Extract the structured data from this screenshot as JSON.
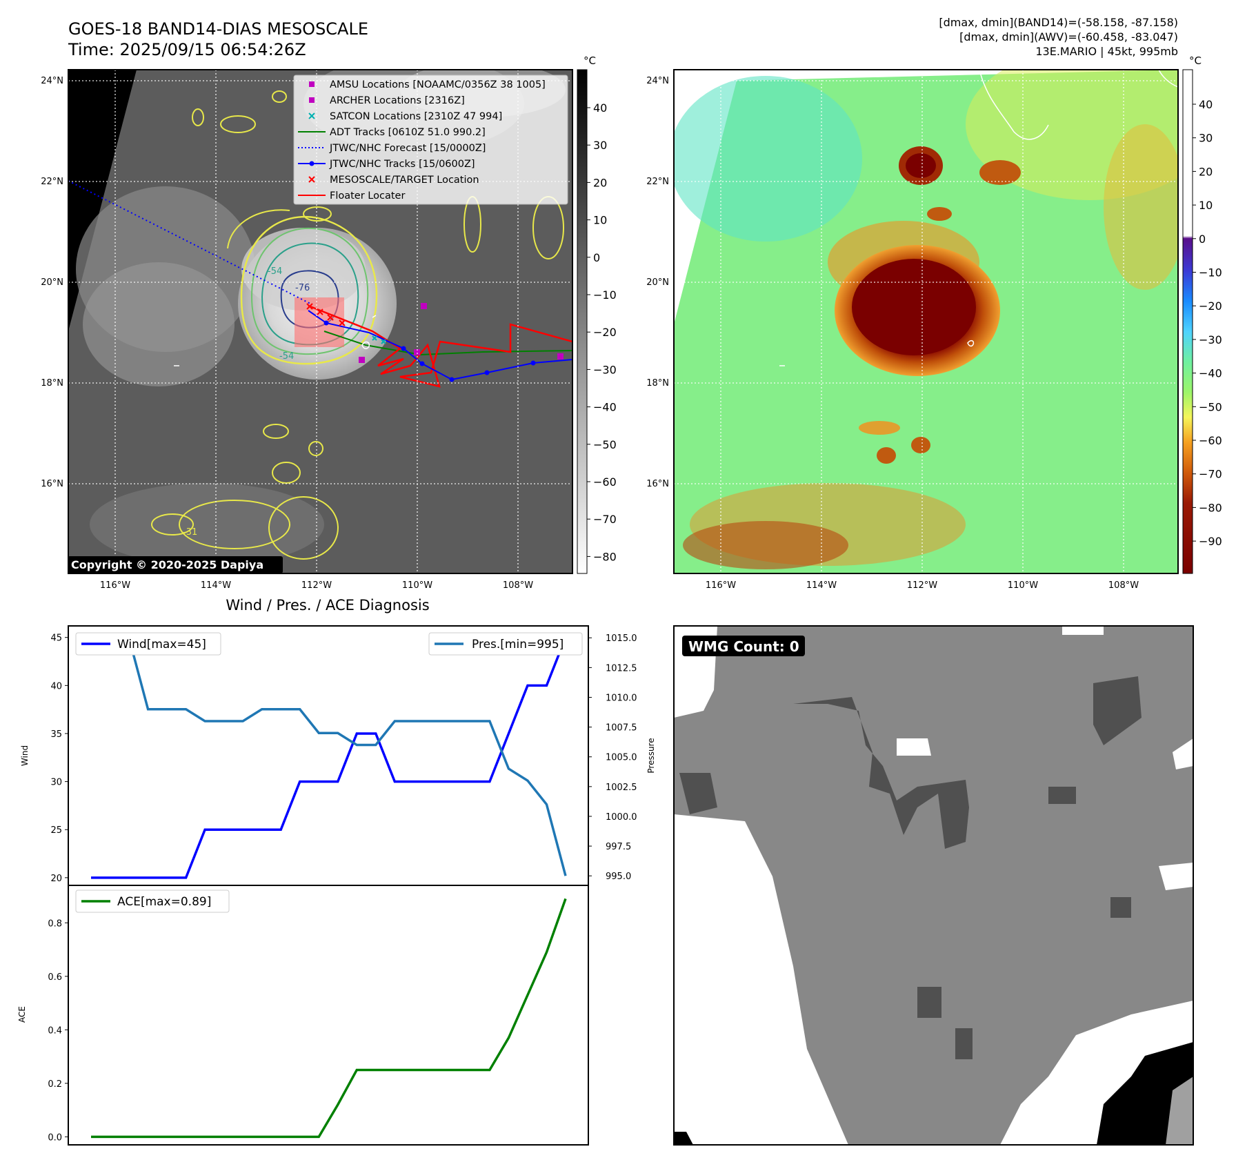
{
  "header": {
    "title_line1": "GOES-18 BAND14-DIAS MESOSCALE",
    "title_line2": "Time: 2025/09/15 06:54:26Z",
    "info_line1": "[dmax, dmin](BAND14)=(-58.158, -87.158)",
    "info_line2": "[dmax, dmin](AWV)=(-60.458, -83.047)",
    "info_line3": "13E.MARIO | 45kt, 995mb"
  },
  "copyright": "Copyright © 2020-2025 Dapiya",
  "map_axes": {
    "lon_labels": [
      "116°W",
      "114°W",
      "112°W",
      "110°W",
      "108°W"
    ],
    "lat_labels": [
      "24°N",
      "22°N",
      "20°N",
      "18°N",
      "16°N"
    ]
  },
  "colorbar_left": {
    "unit": "°C",
    "ticks": [
      "40",
      "30",
      "20",
      "10",
      "0",
      "−10",
      "−20",
      "−30",
      "−40",
      "−50",
      "−60",
      "−70",
      "−80"
    ]
  },
  "colorbar_right": {
    "unit": "°C",
    "ticks": [
      "40",
      "30",
      "20",
      "10",
      "0",
      "−10",
      "−20",
      "−30",
      "−40",
      "−50",
      "−60",
      "−70",
      "−80",
      "−90"
    ]
  },
  "legend": [
    {
      "label": "AMSU Locations [NOAAMC/0356Z 38 1005]",
      "marker": "square",
      "color": "#c000c0"
    },
    {
      "label": "ARCHER Locations [2316Z]",
      "marker": "square",
      "color": "#c000c0"
    },
    {
      "label": "SATCON Locations [2310Z 47 994]",
      "marker": "x",
      "color": "#00b0b0"
    },
    {
      "label": "ADT Tracks [0610Z 51.0 990.2]",
      "marker": "line",
      "color": "#008000"
    },
    {
      "label": "JTWC/NHC Forecast [15/0000Z]",
      "marker": "dotted",
      "color": "#0000ff"
    },
    {
      "label": "JTWC/NHC Tracks [15/0600Z]",
      "marker": "line-dot",
      "color": "#0000ff"
    },
    {
      "label": "MESOSCALE/TARGET Location",
      "marker": "x",
      "color": "#ff0000"
    },
    {
      "label": "Floater Locater",
      "marker": "line",
      "color": "#ff0000"
    }
  ],
  "contour_labels": [
    "-54",
    "-76",
    "-54",
    "-31"
  ],
  "wmg": {
    "label": "WMG Count: 0"
  },
  "chart_data": [
    {
      "type": "line",
      "title": "Wind / Pres. / ACE Diagnosis",
      "ylabel": "Wind",
      "y2label": "Pressure",
      "ylim": [
        19.2,
        46.2
      ],
      "y2lim": [
        994.2,
        1016.0
      ],
      "yticks": [
        "45",
        "40",
        "35",
        "30",
        "25",
        "20"
      ],
      "y2ticks": [
        "1015.0",
        "1012.5",
        "1010.0",
        "1007.5",
        "1005.0",
        "1002.5",
        "1000.0",
        "997.5",
        "995.0"
      ],
      "x": [
        0,
        1,
        2,
        3,
        4,
        5,
        6,
        7,
        8,
        9,
        10,
        11,
        12,
        13,
        14,
        15,
        16,
        17,
        18,
        19,
        20,
        21,
        22,
        23,
        24,
        25
      ],
      "series": [
        {
          "name": "Wind[max=45]",
          "axis": "left",
          "color": "#0000ff",
          "values": [
            20,
            20,
            20,
            20,
            20,
            20,
            25,
            25,
            25,
            25,
            25,
            30,
            30,
            30,
            35,
            35,
            30,
            30,
            30,
            30,
            30,
            30,
            35,
            40,
            40,
            45
          ]
        },
        {
          "name": "Pres.[min=995]",
          "axis": "right",
          "color": "#1f77b4",
          "values": [
            1015,
            1015,
            1015,
            1009,
            1009,
            1009,
            1008,
            1008,
            1008,
            1009,
            1009,
            1009,
            1007,
            1007,
            1006,
            1006,
            1008,
            1008,
            1008,
            1008,
            1008,
            1008,
            1004,
            1003,
            1001,
            995
          ]
        }
      ]
    },
    {
      "type": "line",
      "ylabel": "ACE",
      "ylim": [
        -0.03,
        0.94
      ],
      "yticks": [
        "0.8",
        "0.6",
        "0.4",
        "0.2",
        "0.0"
      ],
      "x": [
        0,
        1,
        2,
        3,
        4,
        5,
        6,
        7,
        8,
        9,
        10,
        11,
        12,
        13,
        14,
        15,
        16,
        17,
        18,
        19,
        20,
        21,
        22,
        23,
        24,
        25
      ],
      "series": [
        {
          "name": "ACE[max=0.89]",
          "color": "#008000",
          "values": [
            0,
            0,
            0,
            0,
            0,
            0,
            0,
            0,
            0,
            0,
            0,
            0,
            0,
            0.12,
            0.25,
            0.25,
            0.25,
            0.25,
            0.25,
            0.25,
            0.25,
            0.25,
            0.37,
            0.53,
            0.69,
            0.89
          ]
        }
      ]
    }
  ]
}
